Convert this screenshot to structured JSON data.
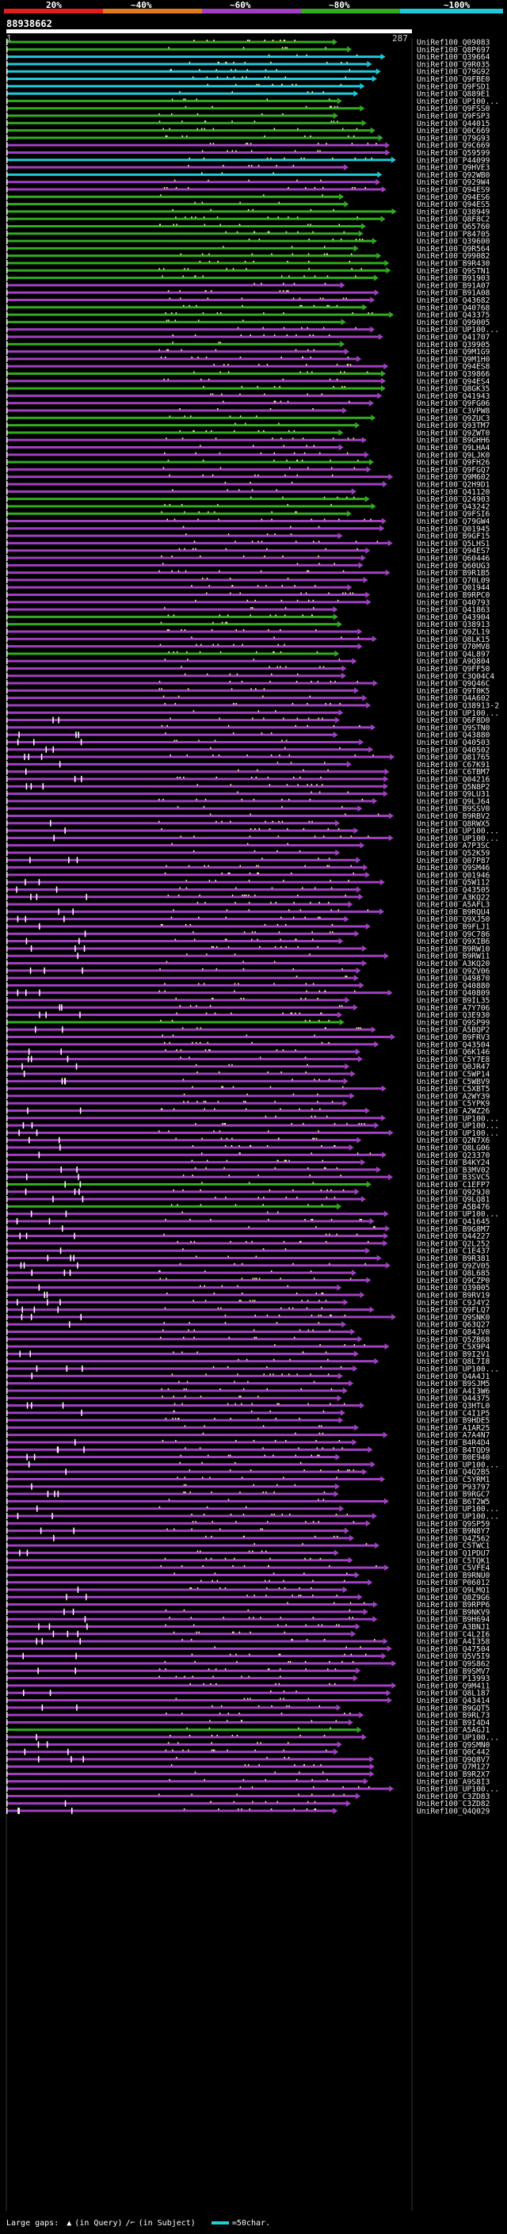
{
  "legend": {
    "labels": [
      "20%",
      "~40%",
      "~60%",
      "~80%",
      "~100%"
    ],
    "colors": [
      "#e01e1e",
      "#e07a1e",
      "#a040c0",
      "#33aa22",
      "#20c8d8"
    ]
  },
  "query": {
    "id": "88938662",
    "start": "1",
    "end": "287"
  },
  "hits": [
    {
      "id": "UniRef100_Q09083",
      "color": "#33aa22"
    },
    {
      "id": "UniRef100_Q8P697",
      "color": "#33aa22"
    },
    {
      "id": "UniRef100_Q39664",
      "color": "#20c8d8"
    },
    {
      "id": "UniRef100_Q9R035",
      "color": "#20c8d8"
    },
    {
      "id": "UniRef100_Q79G92",
      "color": "#20c8d8"
    },
    {
      "id": "UniRef100_Q9FBE0",
      "color": "#20c8d8"
    },
    {
      "id": "UniRef100_Q9FSD1",
      "color": "#20c8d8"
    },
    {
      "id": "UniRef100_Q889E1",
      "color": "#20c8d8"
    },
    {
      "id": "UniRef100_UP100...",
      "color": "#33aa22"
    },
    {
      "id": "UniRef100_Q9FSS0",
      "color": "#33aa22"
    },
    {
      "id": "UniRef100_Q9FSP3",
      "color": "#33aa22"
    },
    {
      "id": "UniRef100_Q44015",
      "color": "#33aa22"
    },
    {
      "id": "UniRef100_Q0C669",
      "color": "#33aa22"
    },
    {
      "id": "UniRef100_Q79G93",
      "color": "#33aa22"
    },
    {
      "id": "UniRef100_Q9C669",
      "color": "#a040c0"
    },
    {
      "id": "UniRef100_Q59599",
      "color": "#a040c0"
    },
    {
      "id": "UniRef100_P44099",
      "color": "#20c8d8"
    },
    {
      "id": "UniRef100_Q9HVE3",
      "color": "#a040c0"
    },
    {
      "id": "UniRef100_Q92WB0",
      "color": "#20c8d8"
    },
    {
      "id": "UniRef100_Q929W4",
      "color": "#a040c0"
    },
    {
      "id": "UniRef100_Q94ES9",
      "color": "#a040c0"
    },
    {
      "id": "UniRef100_Q94ES6",
      "color": "#33aa22"
    },
    {
      "id": "UniRef100_Q94ES5",
      "color": "#33aa22"
    },
    {
      "id": "UniRef100_Q38949",
      "color": "#33aa22"
    },
    {
      "id": "UniRef100_Q8F8C2",
      "color": "#33aa22"
    },
    {
      "id": "UniRef100_Q65760",
      "color": "#33aa22"
    },
    {
      "id": "UniRef100_P84705",
      "color": "#33aa22"
    },
    {
      "id": "UniRef100_Q39600",
      "color": "#33aa22"
    },
    {
      "id": "UniRef100_Q9R564",
      "color": "#33aa22"
    },
    {
      "id": "UniRef100_Q99082",
      "color": "#33aa22"
    },
    {
      "id": "UniRef100_B9R430",
      "color": "#33aa22"
    },
    {
      "id": "UniRef100_Q9STN1",
      "color": "#33aa22"
    },
    {
      "id": "UniRef100_B91903",
      "color": "#33aa22"
    },
    {
      "id": "UniRef100_B91A07",
      "color": "#a040c0"
    },
    {
      "id": "UniRef100_B91A08",
      "color": "#a040c0"
    },
    {
      "id": "UniRef100_Q43682",
      "color": "#a040c0"
    },
    {
      "id": "UniRef100_Q40768",
      "color": "#33aa22"
    },
    {
      "id": "UniRef100_Q43375",
      "color": "#33aa22"
    },
    {
      "id": "UniRef100_Q99005",
      "color": "#33aa22"
    },
    {
      "id": "UniRef100_UP100...",
      "color": "#a040c0"
    },
    {
      "id": "UniRef100_Q41707",
      "color": "#a040c0"
    },
    {
      "id": "UniRef100_Q39905",
      "color": "#33aa22"
    },
    {
      "id": "UniRef100_Q9M1G9",
      "color": "#a040c0"
    },
    {
      "id": "UniRef100_Q9M1H0",
      "color": "#a040c0"
    },
    {
      "id": "UniRef100_Q94ES8",
      "color": "#a040c0"
    },
    {
      "id": "UniRef100_Q39866",
      "color": "#33aa22"
    },
    {
      "id": "UniRef100_Q94ES4",
      "color": "#a040c0"
    },
    {
      "id": "UniRef100_Q8GK35",
      "color": "#33aa22"
    },
    {
      "id": "UniRef100_Q41943",
      "color": "#a040c0"
    },
    {
      "id": "UniRef100_Q9FG06",
      "color": "#a040c0"
    },
    {
      "id": "UniRef100_C3VPW8",
      "color": "#a040c0"
    },
    {
      "id": "UniRef100_Q9ZUC3",
      "color": "#33aa22"
    },
    {
      "id": "UniRef100_Q93TM7",
      "color": "#33aa22"
    },
    {
      "id": "UniRef100_Q9ZWT0",
      "color": "#33aa22"
    },
    {
      "id": "UniRef100_B9GHH6",
      "color": "#a040c0"
    },
    {
      "id": "UniRef100_Q9LHA4",
      "color": "#a040c0"
    },
    {
      "id": "UniRef100_Q9LJK0",
      "color": "#a040c0"
    },
    {
      "id": "UniRef100_Q9FH26",
      "color": "#33aa22"
    },
    {
      "id": "UniRef100_Q9FGQ7",
      "color": "#a040c0"
    },
    {
      "id": "UniRef100_Q9M602",
      "color": "#a040c0"
    },
    {
      "id": "UniRef100_Q2H9D1",
      "color": "#a040c0"
    },
    {
      "id": "UniRef100_Q41120",
      "color": "#a040c0"
    },
    {
      "id": "UniRef100_Q24903",
      "color": "#33aa22"
    },
    {
      "id": "UniRef100_Q43242",
      "color": "#33aa22"
    },
    {
      "id": "UniRef100_Q9FSI6",
      "color": "#33aa22"
    },
    {
      "id": "UniRef100_Q79GW4",
      "color": "#a040c0"
    },
    {
      "id": "UniRef100_Q01945",
      "color": "#a040c0"
    },
    {
      "id": "UniRef100_B9GF15",
      "color": "#a040c0"
    },
    {
      "id": "UniRef100_Q5LHS1",
      "color": "#a040c0"
    },
    {
      "id": "UniRef100_Q94ES7",
      "color": "#a040c0"
    },
    {
      "id": "UniRef100_Q60446",
      "color": "#a040c0"
    },
    {
      "id": "UniRef100_Q60UG3",
      "color": "#a040c0"
    },
    {
      "id": "UniRef100_B9R1B5",
      "color": "#a040c0"
    },
    {
      "id": "UniRef100_Q70L09",
      "color": "#a040c0"
    },
    {
      "id": "UniRef100_Q01944",
      "color": "#a040c0"
    },
    {
      "id": "UniRef100_B9RPC0",
      "color": "#a040c0"
    },
    {
      "id": "UniRef100_Q40793",
      "color": "#a040c0"
    },
    {
      "id": "UniRef100_Q41863",
      "color": "#a040c0"
    },
    {
      "id": "UniRef100_Q43904",
      "color": "#33aa22"
    },
    {
      "id": "UniRef100_Q38913",
      "color": "#33aa22"
    },
    {
      "id": "UniRef100_Q9ZL19",
      "color": "#a040c0"
    },
    {
      "id": "UniRef100_Q8LK15",
      "color": "#a040c0"
    },
    {
      "id": "UniRef100_Q70MV8",
      "color": "#a040c0"
    },
    {
      "id": "UniRef100_Q4L897",
      "color": "#33aa22"
    },
    {
      "id": "UniRef100_A9Q804",
      "color": "#a040c0"
    },
    {
      "id": "UniRef100_Q9FF50",
      "color": "#a040c0"
    },
    {
      "id": "UniRef100_C3Q04C4",
      "color": "#a040c0"
    },
    {
      "id": "UniRef100_Q9Q46C",
      "color": "#a040c0"
    },
    {
      "id": "UniRef100_Q9T0K5",
      "color": "#a040c0"
    },
    {
      "id": "UniRef100_Q4A602",
      "color": "#a040c0"
    },
    {
      "id": "UniRef100_Q38913-2",
      "color": "#a040c0"
    },
    {
      "id": "UniRef100_UP100...",
      "color": "#a040c0"
    },
    {
      "id": "UniRef100_Q6F8D0",
      "color": "#a040c0"
    },
    {
      "id": "UniRef100_Q9STN0",
      "color": "#a040c0"
    },
    {
      "id": "UniRef100_Q43880",
      "color": "#a040c0"
    },
    {
      "id": "UniRef100_Q40503",
      "color": "#a040c0"
    },
    {
      "id": "UniRef100_Q40502",
      "color": "#a040c0"
    },
    {
      "id": "UniRef100_Q81765",
      "color": "#a040c0"
    },
    {
      "id": "UniRef100_C67K91",
      "color": "#a040c0"
    },
    {
      "id": "UniRef100_C6TBM7",
      "color": "#a040c0"
    },
    {
      "id": "UniRef100_Q04216",
      "color": "#a040c0"
    },
    {
      "id": "UniRef100_Q5N8P2",
      "color": "#a040c0"
    },
    {
      "id": "UniRef100_Q9LU31",
      "color": "#a040c0"
    },
    {
      "id": "UniRef100_Q9LJ64",
      "color": "#a040c0"
    },
    {
      "id": "UniRef100_B9SSV0",
      "color": "#a040c0"
    },
    {
      "id": "UniRef100_B9RBV2",
      "color": "#a040c0"
    },
    {
      "id": "UniRef100_Q8RWX5",
      "color": "#a040c0"
    },
    {
      "id": "UniRef100_UP100...",
      "color": "#a040c0"
    },
    {
      "id": "UniRef100_UP100...",
      "color": "#a040c0"
    },
    {
      "id": "UniRef100_A7P3SC",
      "color": "#a040c0"
    },
    {
      "id": "UniRef100_Q52K59",
      "color": "#a040c0"
    },
    {
      "id": "UniRef100_Q07P87",
      "color": "#a040c0"
    },
    {
      "id": "UniRef100_Q9SM46",
      "color": "#a040c0"
    },
    {
      "id": "UniRef100_Q01946",
      "color": "#a040c0"
    },
    {
      "id": "UniRef100_Q5W112",
      "color": "#a040c0"
    },
    {
      "id": "UniRef100_Q43505",
      "color": "#a040c0"
    },
    {
      "id": "UniRef100_A3KQ22",
      "color": "#a040c0"
    },
    {
      "id": "UniRef100_A5AFL3",
      "color": "#a040c0"
    },
    {
      "id": "UniRef100_B9RQU4",
      "color": "#a040c0"
    },
    {
      "id": "UniRef100_Q9XJ50",
      "color": "#a040c0"
    },
    {
      "id": "UniRef100_B9FLJ1",
      "color": "#a040c0"
    },
    {
      "id": "UniRef100_Q9C786",
      "color": "#a040c0"
    },
    {
      "id": "UniRef100_Q9XIB6",
      "color": "#a040c0"
    },
    {
      "id": "UniRef100_B9RW10",
      "color": "#a040c0"
    },
    {
      "id": "UniRef100_B9RW11",
      "color": "#a040c0"
    },
    {
      "id": "UniRef100_A3KQ20",
      "color": "#a040c0"
    },
    {
      "id": "UniRef100_Q9ZV06",
      "color": "#a040c0"
    },
    {
      "id": "UniRef100_Q49870",
      "color": "#a040c0"
    },
    {
      "id": "UniRef100_Q40880",
      "color": "#a040c0"
    },
    {
      "id": "UniRef100_Q40809",
      "color": "#a040c0"
    },
    {
      "id": "UniRef100_B9IL35",
      "color": "#a040c0"
    },
    {
      "id": "UniRef100_A7Y706",
      "color": "#a040c0"
    },
    {
      "id": "UniRef100_Q3E930",
      "color": "#a040c0"
    },
    {
      "id": "UniRef100_Q9SP99",
      "color": "#33aa22"
    },
    {
      "id": "UniRef100_A5BQP2",
      "color": "#a040c0"
    },
    {
      "id": "UniRef100_B9FRV3",
      "color": "#a040c0"
    },
    {
      "id": "UniRef100_Q43504",
      "color": "#a040c0"
    },
    {
      "id": "UniRef100_Q6K146",
      "color": "#a040c0"
    },
    {
      "id": "UniRef100_C5Y7E8",
      "color": "#a040c0"
    },
    {
      "id": "UniRef100_Q0JR47",
      "color": "#a040c0"
    },
    {
      "id": "UniRef100_C5WP14",
      "color": "#a040c0"
    },
    {
      "id": "UniRef100_C5WBV9",
      "color": "#a040c0"
    },
    {
      "id": "UniRef100_C5XBT5",
      "color": "#a040c0"
    },
    {
      "id": "UniRef100_A2WY39",
      "color": "#a040c0"
    },
    {
      "id": "UniRef100_C5YPK9",
      "color": "#a040c0"
    },
    {
      "id": "UniRef100_A2WZ26",
      "color": "#a040c0"
    },
    {
      "id": "UniRef100_UP100...",
      "color": "#a040c0"
    },
    {
      "id": "UniRef100_UP100...",
      "color": "#a040c0"
    },
    {
      "id": "UniRef100_UP100...",
      "color": "#a040c0"
    },
    {
      "id": "UniRef100_Q2N7X6",
      "color": "#a040c0"
    },
    {
      "id": "UniRef100_Q8LG06",
      "color": "#a040c0"
    },
    {
      "id": "UniRef100_Q23370",
      "color": "#a040c0"
    },
    {
      "id": "UniRef100_B4KY24",
      "color": "#a040c0"
    },
    {
      "id": "UniRef100_B3MV02",
      "color": "#a040c0"
    },
    {
      "id": "UniRef100_B3SVC5",
      "color": "#a040c0"
    },
    {
      "id": "UniRef100_C1EFP7",
      "color": "#33aa22"
    },
    {
      "id": "UniRef100_Q929J0",
      "color": "#a040c0"
    },
    {
      "id": "UniRef100_Q9LQ81",
      "color": "#a040c0"
    },
    {
      "id": "UniRef100_A5B476",
      "color": "#33aa22"
    },
    {
      "id": "UniRef100_UP100...",
      "color": "#a040c0"
    },
    {
      "id": "UniRef100_Q41645",
      "color": "#a040c0"
    },
    {
      "id": "UniRef100_B9G8M7",
      "color": "#a040c0"
    },
    {
      "id": "UniRef100_Q44227",
      "color": "#a040c0"
    },
    {
      "id": "UniRef100_Q2L252",
      "color": "#a040c0"
    },
    {
      "id": "UniRef100_C1E437",
      "color": "#a040c0"
    },
    {
      "id": "UniRef100_B9R381",
      "color": "#a040c0"
    },
    {
      "id": "UniRef100_Q9ZV05",
      "color": "#a040c0"
    },
    {
      "id": "UniRef100_Q8L685",
      "color": "#a040c0"
    },
    {
      "id": "UniRef100_Q9CZP0",
      "color": "#a040c0"
    },
    {
      "id": "UniRef100_Q39005",
      "color": "#a040c0"
    },
    {
      "id": "UniRef100_B9RV19",
      "color": "#a040c0"
    },
    {
      "id": "UniRef100_C9J4Y2",
      "color": "#a040c0"
    },
    {
      "id": "UniRef100_Q9FLQ7",
      "color": "#a040c0"
    },
    {
      "id": "UniRef100_Q9SNK0",
      "color": "#a040c0"
    },
    {
      "id": "UniRef100_Q63Q27",
      "color": "#a040c0"
    },
    {
      "id": "UniRef100_Q84JV0",
      "color": "#a040c0"
    },
    {
      "id": "UniRef100_Q5ZB68",
      "color": "#a040c0"
    },
    {
      "id": "UniRef100_C5X9P4",
      "color": "#a040c0"
    },
    {
      "id": "UniRef100_B9I2V1",
      "color": "#a040c0"
    },
    {
      "id": "UniRef100_Q8L7I8",
      "color": "#a040c0"
    },
    {
      "id": "UniRef100_UP100...",
      "color": "#a040c0"
    },
    {
      "id": "UniRef100_Q4A4J1",
      "color": "#a040c0"
    },
    {
      "id": "UniRef100_B9SJM5",
      "color": "#a040c0"
    },
    {
      "id": "UniRef100_A4I3W6",
      "color": "#a040c0"
    },
    {
      "id": "UniRef100_Q44375",
      "color": "#a040c0"
    },
    {
      "id": "UniRef100_Q3HTL0",
      "color": "#a040c0"
    },
    {
      "id": "UniRef100_C4I1P5",
      "color": "#a040c0"
    },
    {
      "id": "UniRef100_B9HDE5",
      "color": "#a040c0"
    },
    {
      "id": "UniRef100_A1AR25",
      "color": "#a040c0"
    },
    {
      "id": "UniRef100_A7A4N7",
      "color": "#a040c0"
    },
    {
      "id": "UniRef100_B4R4D4",
      "color": "#a040c0"
    },
    {
      "id": "UniRef100_B4TQD9",
      "color": "#a040c0"
    },
    {
      "id": "UniRef100_B0E940",
      "color": "#a040c0"
    },
    {
      "id": "UniRef100_UP100...",
      "color": "#a040c0"
    },
    {
      "id": "UniRef100_Q4Q2B5",
      "color": "#a040c0"
    },
    {
      "id": "UniRef100_C5YRM1",
      "color": "#a040c0"
    },
    {
      "id": "UniRef100_P93797",
      "color": "#a040c0"
    },
    {
      "id": "UniRef100_B9RGC7",
      "color": "#a040c0"
    },
    {
      "id": "UniRef100_B6T2W5",
      "color": "#a040c0"
    },
    {
      "id": "UniRef100_UP100...",
      "color": "#a040c0"
    },
    {
      "id": "UniRef100_UP100...",
      "color": "#a040c0"
    },
    {
      "id": "UniRef100_Q9SP59",
      "color": "#a040c0"
    },
    {
      "id": "UniRef100_B9N8Y7",
      "color": "#a040c0"
    },
    {
      "id": "UniRef100_Q4Z562",
      "color": "#a040c0"
    },
    {
      "id": "UniRef100_C5TWC1",
      "color": "#a040c0"
    },
    {
      "id": "UniRef100_Q1PDU7",
      "color": "#a040c0"
    },
    {
      "id": "UniRef100_C5TQK1",
      "color": "#a040c0"
    },
    {
      "id": "UniRef100_C5VFE4",
      "color": "#a040c0"
    },
    {
      "id": "UniRef100_B9RNU0",
      "color": "#a040c0"
    },
    {
      "id": "UniRef100_P06012",
      "color": "#a040c0"
    },
    {
      "id": "UniRef100_Q9LMQ1",
      "color": "#a040c0"
    },
    {
      "id": "UniRef100_Q8Z9G6",
      "color": "#a040c0"
    },
    {
      "id": "UniRef100_B9RPP6",
      "color": "#a040c0"
    },
    {
      "id": "UniRef100_B9NKV9",
      "color": "#a040c0"
    },
    {
      "id": "UniRef100_B9H694",
      "color": "#a040c0"
    },
    {
      "id": "UniRef100_A3BNJ1",
      "color": "#a040c0"
    },
    {
      "id": "UniRef100_C4L2I6",
      "color": "#a040c0"
    },
    {
      "id": "UniRef100_A4I358",
      "color": "#a040c0"
    },
    {
      "id": "UniRef100_Q47504",
      "color": "#a040c0"
    },
    {
      "id": "UniRef100_Q5V5I9",
      "color": "#a040c0"
    },
    {
      "id": "UniRef100_Q9S862",
      "color": "#a040c0"
    },
    {
      "id": "UniRef100_B9SMV7",
      "color": "#a040c0"
    },
    {
      "id": "UniRef100_P13993",
      "color": "#a040c0"
    },
    {
      "id": "UniRef100_Q9M411",
      "color": "#a040c0"
    },
    {
      "id": "UniRef100_Q8L187",
      "color": "#a040c0"
    },
    {
      "id": "UniRef100_Q43414",
      "color": "#a040c0"
    },
    {
      "id": "UniRef100_B9GQT5",
      "color": "#a040c0"
    },
    {
      "id": "UniRef100_B9RL73",
      "color": "#a040c0"
    },
    {
      "id": "UniRef100_B9I4D4",
      "color": "#a040c0"
    },
    {
      "id": "UniRef100_A5AGJ1",
      "color": "#33aa22"
    },
    {
      "id": "UniRef100_UP100...",
      "color": "#a040c0"
    },
    {
      "id": "UniRef100_Q9SMN0",
      "color": "#a040c0"
    },
    {
      "id": "UniRef100_Q0C442",
      "color": "#a040c0"
    },
    {
      "id": "UniRef100_Q9Q8V7",
      "color": "#a040c0"
    },
    {
      "id": "UniRef100_Q7M127",
      "color": "#a040c0"
    },
    {
      "id": "UniRef100_B9R2X7",
      "color": "#a040c0"
    },
    {
      "id": "UniRef100_A9S8I3",
      "color": "#a040c0"
    },
    {
      "id": "UniRef100_UP100...",
      "color": "#a040c0"
    },
    {
      "id": "UniRef100_C3ZD83",
      "color": "#a040c0"
    },
    {
      "id": "UniRef100_C3ZD82",
      "color": "#a040c0"
    },
    {
      "id": "UniRef100_Q4Q029",
      "color": "#a040c0"
    }
  ],
  "footer": {
    "text": "Large gaps:",
    "query_gap": "(in Query)",
    "subject_gap": "(in Subject)",
    "scale": "=50char."
  }
}
